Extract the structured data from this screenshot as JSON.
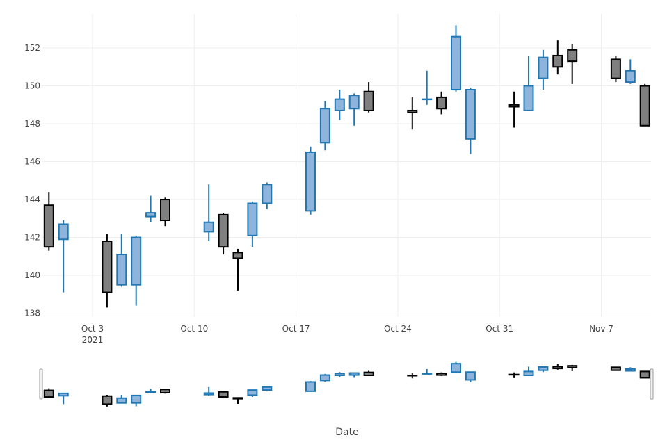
{
  "chart_data": {
    "type": "candlestick",
    "xlabel": "Date",
    "ylabel": "",
    "ylim": [
      137.8,
      153.8
    ],
    "y_ticks": [
      138,
      140,
      142,
      144,
      146,
      148,
      150,
      152
    ],
    "x_ticks": [
      {
        "date": "2021-10-03",
        "label": "Oct 3",
        "sublabel": "2021"
      },
      {
        "date": "2021-10-10",
        "label": "Oct 10",
        "sublabel": ""
      },
      {
        "date": "2021-10-17",
        "label": "Oct 17",
        "sublabel": ""
      },
      {
        "date": "2021-10-24",
        "label": "Oct 24",
        "sublabel": ""
      },
      {
        "date": "2021-10-31",
        "label": "Oct 31",
        "sublabel": ""
      },
      {
        "date": "2021-11-07",
        "label": "Nov 7",
        "sublabel": ""
      }
    ],
    "grid": true,
    "range_slider": true,
    "colors": {
      "increasing_line": "#1f77b4",
      "increasing_fill": "#8fb4dc",
      "decreasing_line": "#000000",
      "decreasing_fill": "#7f7f7f",
      "grid": "#eeeeee",
      "text": "#444444"
    },
    "candles": [
      {
        "date": "2021-09-30",
        "open": 143.7,
        "high": 144.4,
        "low": 141.3,
        "close": 141.5
      },
      {
        "date": "2021-10-01",
        "open": 141.9,
        "high": 142.9,
        "low": 139.1,
        "close": 142.7
      },
      {
        "date": "2021-10-04",
        "open": 141.8,
        "high": 142.2,
        "low": 138.3,
        "close": 139.1
      },
      {
        "date": "2021-10-05",
        "open": 139.5,
        "high": 142.2,
        "low": 139.4,
        "close": 141.1
      },
      {
        "date": "2021-10-06",
        "open": 139.5,
        "high": 142.1,
        "low": 138.4,
        "close": 142.0
      },
      {
        "date": "2021-10-07",
        "open": 143.1,
        "high": 144.2,
        "low": 142.8,
        "close": 143.3
      },
      {
        "date": "2021-10-08",
        "open": 144.0,
        "high": 144.1,
        "low": 142.6,
        "close": 142.9
      },
      {
        "date": "2021-10-11",
        "open": 142.3,
        "high": 144.8,
        "low": 141.8,
        "close": 142.8
      },
      {
        "date": "2021-10-12",
        "open": 143.2,
        "high": 143.3,
        "low": 141.1,
        "close": 141.5
      },
      {
        "date": "2021-10-13",
        "open": 141.2,
        "high": 141.4,
        "low": 139.2,
        "close": 140.9
      },
      {
        "date": "2021-10-14",
        "open": 142.1,
        "high": 143.9,
        "low": 141.5,
        "close": 143.8
      },
      {
        "date": "2021-10-15",
        "open": 143.8,
        "high": 144.9,
        "low": 143.5,
        "close": 144.8
      },
      {
        "date": "2021-10-18",
        "open": 143.4,
        "high": 146.8,
        "low": 143.2,
        "close": 146.5
      },
      {
        "date": "2021-10-19",
        "open": 147.0,
        "high": 149.2,
        "low": 146.6,
        "close": 148.8
      },
      {
        "date": "2021-10-20",
        "open": 148.7,
        "high": 149.8,
        "low": 148.2,
        "close": 149.3
      },
      {
        "date": "2021-10-21",
        "open": 148.8,
        "high": 149.6,
        "low": 147.9,
        "close": 149.5
      },
      {
        "date": "2021-10-22",
        "open": 149.7,
        "high": 150.2,
        "low": 148.6,
        "close": 148.7
      },
      {
        "date": "2021-10-25",
        "open": 148.7,
        "high": 149.4,
        "low": 147.7,
        "close": 148.6
      },
      {
        "date": "2021-10-26",
        "open": 149.3,
        "high": 150.8,
        "low": 149.0,
        "close": 149.3
      },
      {
        "date": "2021-10-27",
        "open": 149.4,
        "high": 149.7,
        "low": 148.5,
        "close": 148.8
      },
      {
        "date": "2021-10-28",
        "open": 149.8,
        "high": 153.2,
        "low": 149.7,
        "close": 152.6
      },
      {
        "date": "2021-10-29",
        "open": 147.2,
        "high": 149.9,
        "low": 146.4,
        "close": 149.8
      },
      {
        "date": "2021-11-01",
        "open": 149.0,
        "high": 149.7,
        "low": 147.8,
        "close": 148.9
      },
      {
        "date": "2021-11-02",
        "open": 148.7,
        "high": 151.6,
        "low": 148.7,
        "close": 150.0
      },
      {
        "date": "2021-11-03",
        "open": 150.4,
        "high": 151.9,
        "low": 149.8,
        "close": 151.5
      },
      {
        "date": "2021-11-04",
        "open": 151.6,
        "high": 152.4,
        "low": 150.6,
        "close": 151.0
      },
      {
        "date": "2021-11-05",
        "open": 151.9,
        "high": 152.2,
        "low": 150.1,
        "close": 151.3
      },
      {
        "date": "2021-11-08",
        "open": 151.4,
        "high": 151.6,
        "low": 150.2,
        "close": 150.4
      },
      {
        "date": "2021-11-09",
        "open": 150.2,
        "high": 151.4,
        "low": 150.1,
        "close": 150.8
      },
      {
        "date": "2021-11-10",
        "open": 150.0,
        "high": 150.1,
        "low": 147.9,
        "close": 147.9
      }
    ]
  }
}
